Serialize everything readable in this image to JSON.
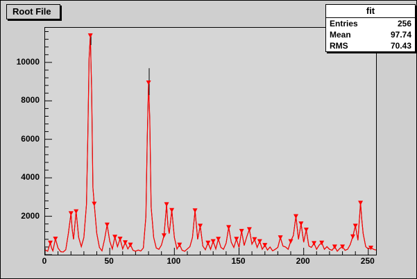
{
  "window": {
    "title": "Root File"
  },
  "stats": {
    "title": "fit",
    "rows": [
      {
        "label": "Entries",
        "value": "256"
      },
      {
        "label": "Mean",
        "value": "97.74"
      },
      {
        "label": "RMS",
        "value": "70.43"
      }
    ]
  },
  "colors": {
    "canvas": "#cfcfcf",
    "frame": "#d6d6d6",
    "histogram": "#000000",
    "fit": "#ff0000",
    "marker": "#ff0000"
  },
  "chart_data": {
    "type": "line",
    "subtype": "histogram-with-fit-and-peak-markers",
    "title": "Root File",
    "legend": "fit",
    "xlabel": "",
    "ylabel": "",
    "xlim": [
      0,
      256
    ],
    "ylim": [
      0,
      11800
    ],
    "xticks": [
      0,
      50,
      100,
      150,
      200,
      250
    ],
    "yticks": [
      2000,
      4000,
      6000,
      8000,
      10000
    ],
    "x_minor_step": 10,
    "y_minor_step": 400,
    "hist_color": "#000000",
    "fit_color": "#ff0000",
    "marker_color": "#ff0000",
    "points": [
      [
        0,
        250
      ],
      [
        2,
        180
      ],
      [
        4,
        620
      ],
      [
        5,
        350
      ],
      [
        6,
        200
      ],
      [
        8,
        830
      ],
      [
        10,
        350
      ],
      [
        12,
        160
      ],
      [
        14,
        140
      ],
      [
        16,
        260
      ],
      [
        18,
        1100
      ],
      [
        20,
        2150
      ],
      [
        21,
        1300
      ],
      [
        22,
        800
      ],
      [
        24,
        2250
      ],
      [
        26,
        900
      ],
      [
        28,
        420
      ],
      [
        30,
        900
      ],
      [
        32,
        2600
      ],
      [
        33,
        6000
      ],
      [
        34,
        10200
      ],
      [
        35,
        11400
      ],
      [
        36,
        8500
      ],
      [
        37,
        3500
      ],
      [
        38,
        2650
      ],
      [
        40,
        1100
      ],
      [
        42,
        380
      ],
      [
        44,
        200
      ],
      [
        46,
        800
      ],
      [
        48,
        1560
      ],
      [
        50,
        700
      ],
      [
        52,
        300
      ],
      [
        54,
        930
      ],
      [
        56,
        420
      ],
      [
        58,
        830
      ],
      [
        60,
        300
      ],
      [
        62,
        640
      ],
      [
        64,
        300
      ],
      [
        66,
        520
      ],
      [
        68,
        230
      ],
      [
        70,
        180
      ],
      [
        72,
        240
      ],
      [
        74,
        190
      ],
      [
        76,
        350
      ],
      [
        78,
        2000
      ],
      [
        79,
        6000
      ],
      [
        80,
        8950
      ],
      [
        81,
        7000
      ],
      [
        82,
        2500
      ],
      [
        84,
        900
      ],
      [
        86,
        350
      ],
      [
        88,
        280
      ],
      [
        90,
        500
      ],
      [
        92,
        1000
      ],
      [
        94,
        2620
      ],
      [
        95,
        1500
      ],
      [
        96,
        1100
      ],
      [
        98,
        2320
      ],
      [
        100,
        900
      ],
      [
        102,
        300
      ],
      [
        104,
        520
      ],
      [
        106,
        230
      ],
      [
        108,
        180
      ],
      [
        110,
        300
      ],
      [
        112,
        420
      ],
      [
        114,
        900
      ],
      [
        116,
        2300
      ],
      [
        118,
        800
      ],
      [
        120,
        1500
      ],
      [
        122,
        450
      ],
      [
        124,
        260
      ],
      [
        126,
        620
      ],
      [
        128,
        280
      ],
      [
        130,
        700
      ],
      [
        132,
        300
      ],
      [
        134,
        820
      ],
      [
        136,
        380
      ],
      [
        138,
        280
      ],
      [
        140,
        600
      ],
      [
        142,
        1430
      ],
      [
        144,
        650
      ],
      [
        146,
        380
      ],
      [
        148,
        820
      ],
      [
        150,
        380
      ],
      [
        152,
        1230
      ],
      [
        154,
        480
      ],
      [
        156,
        940
      ],
      [
        158,
        1320
      ],
      [
        160,
        550
      ],
      [
        162,
        800
      ],
      [
        164,
        380
      ],
      [
        166,
        700
      ],
      [
        168,
        280
      ],
      [
        170,
        500
      ],
      [
        172,
        240
      ],
      [
        174,
        400
      ],
      [
        176,
        200
      ],
      [
        178,
        280
      ],
      [
        180,
        380
      ],
      [
        182,
        900
      ],
      [
        184,
        450
      ],
      [
        186,
        400
      ],
      [
        188,
        280
      ],
      [
        190,
        700
      ],
      [
        192,
        1000
      ],
      [
        194,
        2000
      ],
      [
        196,
        800
      ],
      [
        198,
        1620
      ],
      [
        200,
        650
      ],
      [
        202,
        1300
      ],
      [
        204,
        450
      ],
      [
        206,
        380
      ],
      [
        208,
        600
      ],
      [
        210,
        280
      ],
      [
        212,
        500
      ],
      [
        214,
        620
      ],
      [
        216,
        280
      ],
      [
        218,
        420
      ],
      [
        220,
        280
      ],
      [
        222,
        230
      ],
      [
        224,
        420
      ],
      [
        226,
        180
      ],
      [
        228,
        330
      ],
      [
        230,
        420
      ],
      [
        232,
        230
      ],
      [
        234,
        280
      ],
      [
        236,
        520
      ],
      [
        238,
        950
      ],
      [
        240,
        1500
      ],
      [
        242,
        750
      ],
      [
        244,
        2700
      ],
      [
        245,
        1800
      ],
      [
        246,
        1100
      ],
      [
        248,
        420
      ],
      [
        250,
        300
      ],
      [
        252,
        360
      ],
      [
        254,
        280
      ],
      [
        256,
        240
      ]
    ],
    "markers": [
      [
        4,
        620
      ],
      [
        8,
        830
      ],
      [
        20,
        2150
      ],
      [
        24,
        2250
      ],
      [
        35,
        11400
      ],
      [
        38,
        2650
      ],
      [
        48,
        1560
      ],
      [
        54,
        930
      ],
      [
        58,
        830
      ],
      [
        62,
        640
      ],
      [
        66,
        520
      ],
      [
        80,
        8950
      ],
      [
        92,
        1000
      ],
      [
        94,
        2620
      ],
      [
        98,
        2320
      ],
      [
        104,
        520
      ],
      [
        116,
        2300
      ],
      [
        120,
        1500
      ],
      [
        126,
        620
      ],
      [
        130,
        700
      ],
      [
        134,
        820
      ],
      [
        142,
        1430
      ],
      [
        148,
        820
      ],
      [
        152,
        1230
      ],
      [
        158,
        1320
      ],
      [
        162,
        800
      ],
      [
        166,
        700
      ],
      [
        170,
        500
      ],
      [
        182,
        900
      ],
      [
        190,
        700
      ],
      [
        194,
        2000
      ],
      [
        198,
        1620
      ],
      [
        202,
        1300
      ],
      [
        208,
        600
      ],
      [
        214,
        620
      ],
      [
        224,
        420
      ],
      [
        230,
        420
      ],
      [
        238,
        950
      ],
      [
        240,
        1500
      ],
      [
        244,
        2700
      ],
      [
        252,
        360
      ]
    ],
    "error_bars": [
      [
        35.5,
        10900,
        11500
      ],
      [
        80.5,
        8300,
        9700
      ]
    ]
  }
}
